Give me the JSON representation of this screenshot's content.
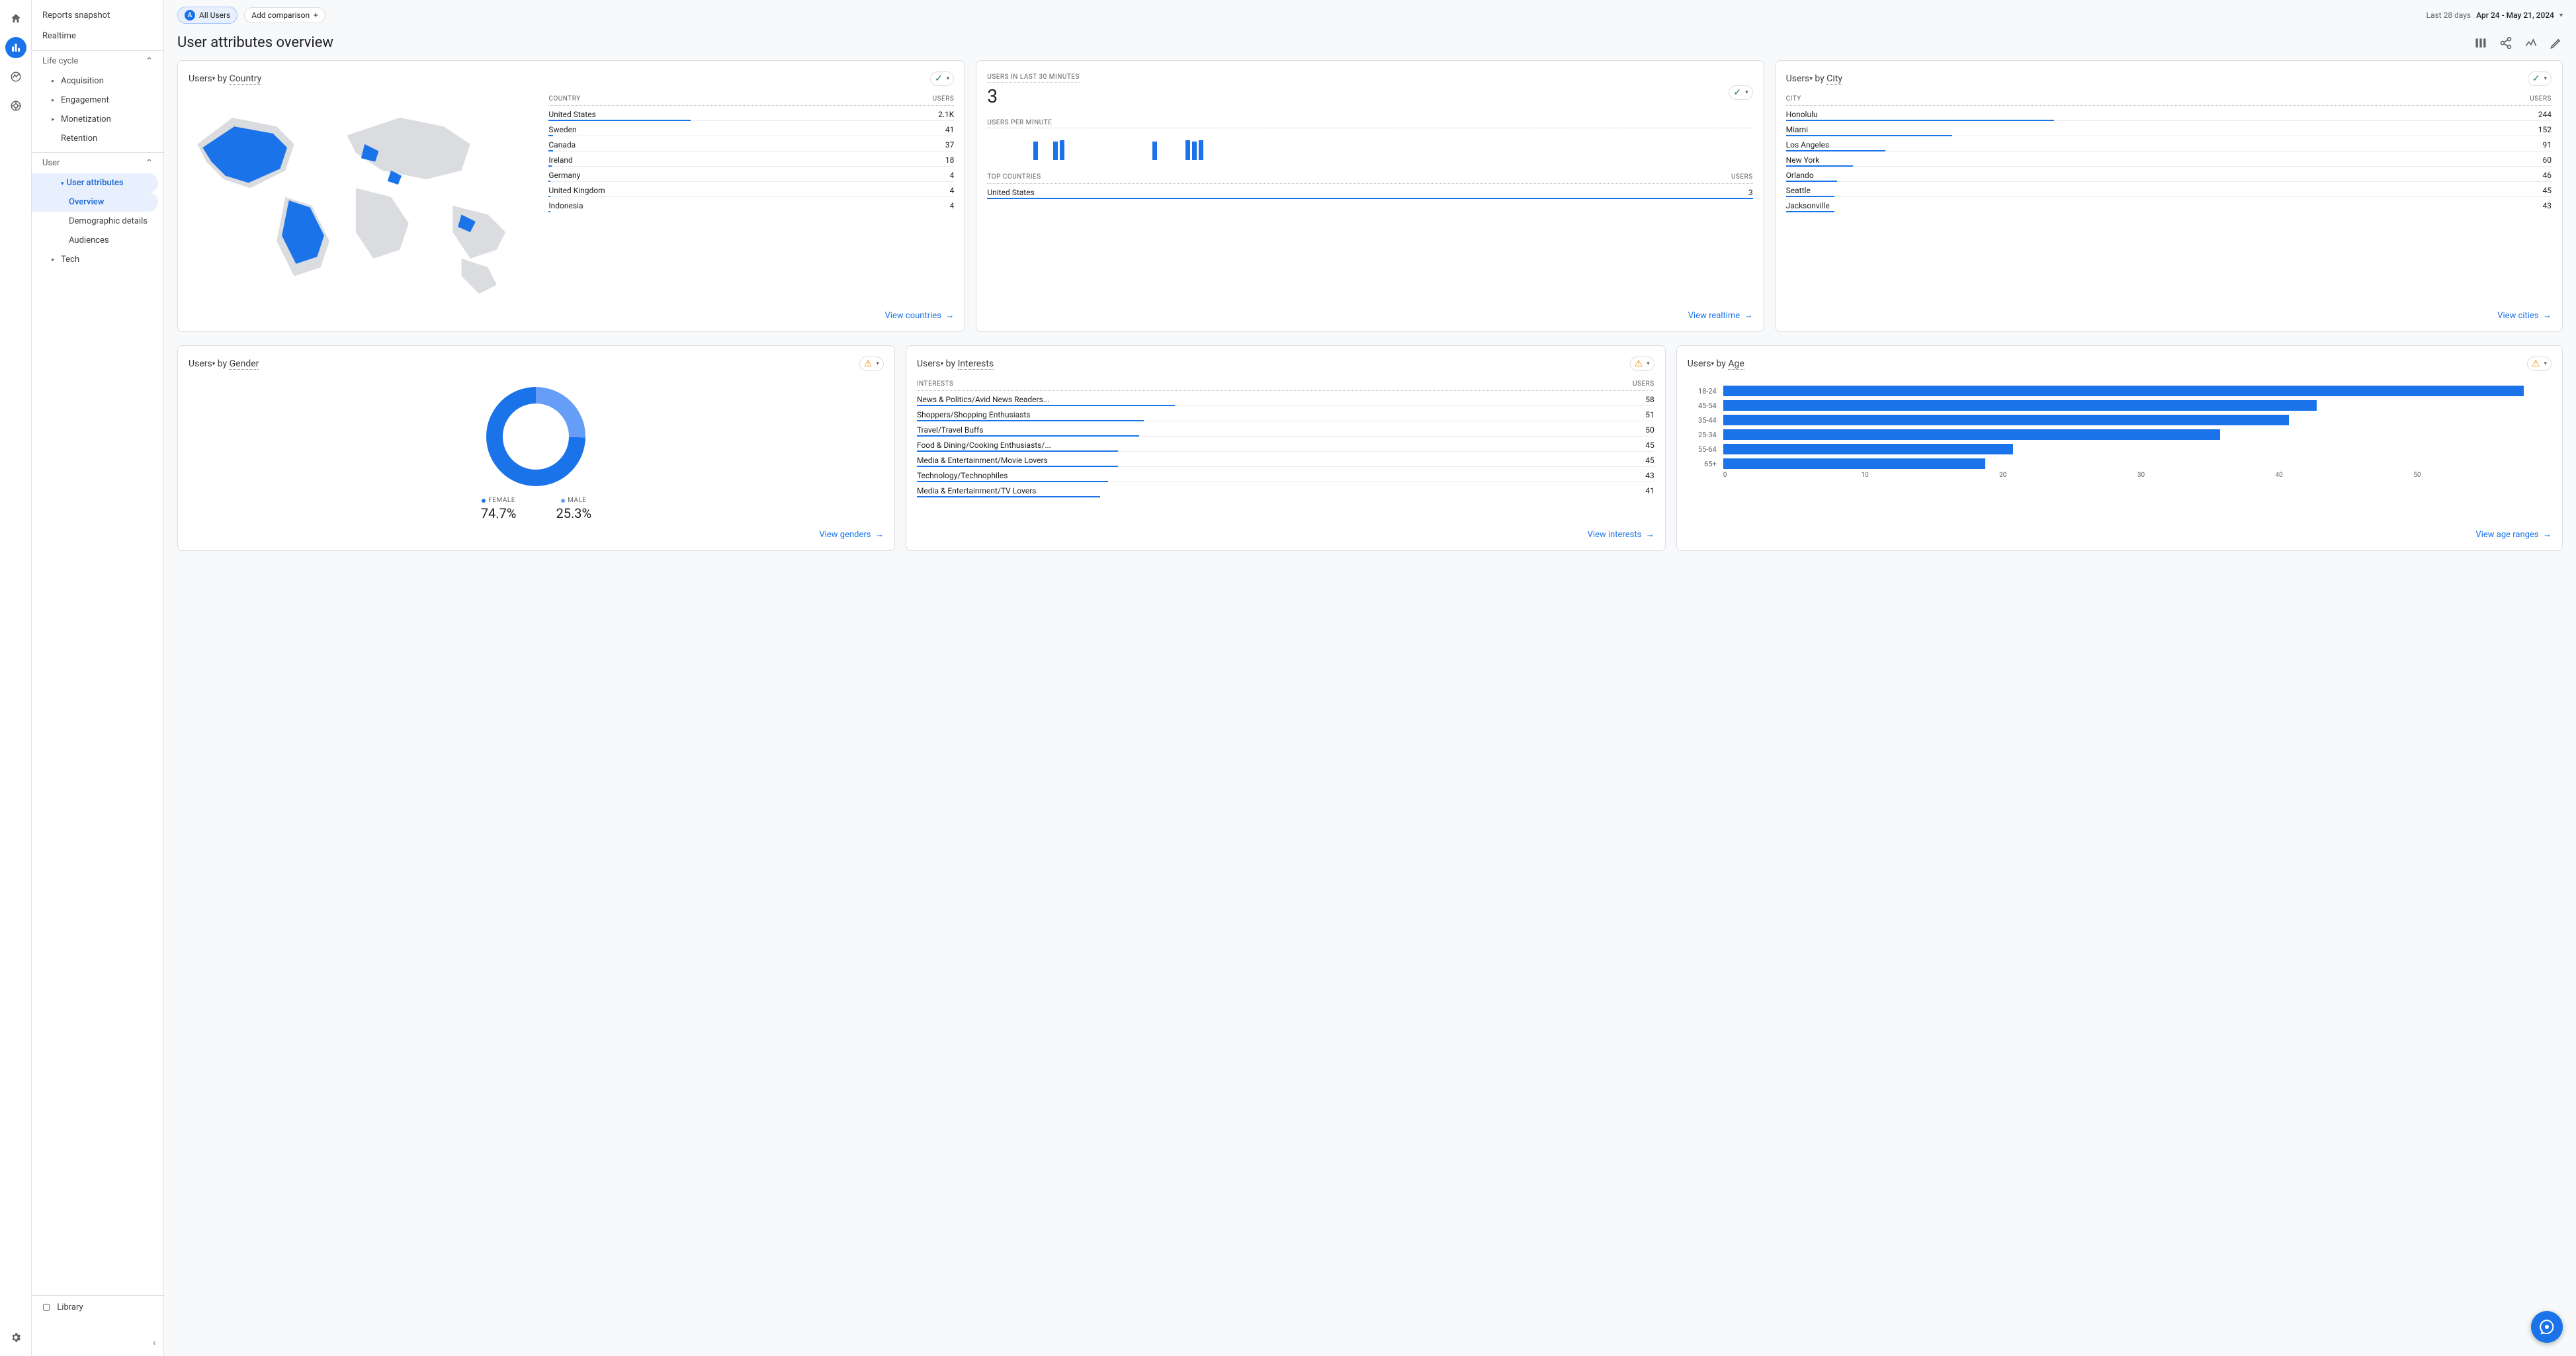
{
  "segment_label": "All Users",
  "add_comparison": "Add comparison",
  "date_prefix": "Last 28 days",
  "date_range": "Apr 24 - May 21, 2024",
  "page_title": "User attributes overview",
  "nav": {
    "snapshot": "Reports snapshot",
    "realtime": "Realtime",
    "life_cycle": "Life cycle",
    "acquisition": "Acquisition",
    "engagement": "Engagement",
    "monetization": "Monetization",
    "retention": "Retention",
    "user": "User",
    "user_attributes": "User attributes",
    "overview": "Overview",
    "demographic": "Demographic details",
    "audiences": "Audiences",
    "tech": "Tech",
    "library": "Library"
  },
  "country_card": {
    "title_metric": "Users",
    "title_by": "by",
    "title_dim": "Country",
    "col1": "COUNTRY",
    "col2": "USERS",
    "rows": [
      {
        "k": "United States",
        "v": "2.1K",
        "pct": 100
      },
      {
        "k": "Sweden",
        "v": "41",
        "pct": 3
      },
      {
        "k": "Canada",
        "v": "37",
        "pct": 3
      },
      {
        "k": "Ireland",
        "v": "18",
        "pct": 2
      },
      {
        "k": "Germany",
        "v": "4",
        "pct": 1
      },
      {
        "k": "United Kingdom",
        "v": "4",
        "pct": 1
      },
      {
        "k": "Indonesia",
        "v": "4",
        "pct": 1
      }
    ],
    "foot": "View countries"
  },
  "realtime_card": {
    "label": "USERS IN LAST 30 MINUTES",
    "value": "3",
    "per_min": "USERS PER MINUTE",
    "spark": [
      0,
      0,
      0,
      0,
      0,
      0,
      0,
      28,
      0,
      0,
      28,
      30,
      0,
      0,
      0,
      0,
      0,
      0,
      0,
      0,
      0,
      0,
      0,
      0,
      0,
      28,
      0,
      0,
      0,
      0,
      30,
      28,
      30,
      0,
      0
    ],
    "top_label": "TOP COUNTRIES",
    "top_col2": "USERS",
    "top_rows": [
      {
        "k": "United States",
        "v": "3",
        "pct": 100
      }
    ],
    "foot": "View realtime"
  },
  "city_card": {
    "title_metric": "Users",
    "title_by": "by",
    "title_dim": "City",
    "col1": "CITY",
    "col2": "USERS",
    "rows": [
      {
        "k": "Honolulu",
        "v": "244",
        "pct": 100
      },
      {
        "k": "Miami",
        "v": "152",
        "pct": 62
      },
      {
        "k": "Los Angeles",
        "v": "91",
        "pct": 37
      },
      {
        "k": "New York",
        "v": "60",
        "pct": 25
      },
      {
        "k": "Orlando",
        "v": "46",
        "pct": 19
      },
      {
        "k": "Seattle",
        "v": "45",
        "pct": 18
      },
      {
        "k": "Jacksonville",
        "v": "43",
        "pct": 18
      }
    ],
    "foot": "View cities"
  },
  "gender_card": {
    "title_metric": "Users",
    "title_by": "by",
    "title_dim": "Gender",
    "female_label": "FEMALE",
    "female_val": "74.7%",
    "female_color": "#1a73e8",
    "male_label": "MALE",
    "male_val": "25.3%",
    "male_color": "#669df6",
    "foot": "View genders"
  },
  "interests_card": {
    "title_metric": "Users",
    "title_by": "by",
    "title_dim": "Interests",
    "col1": "INTERESTS",
    "col2": "USERS",
    "rows": [
      {
        "k": "News & Politics/Avid News Readers...",
        "v": "58",
        "pct": 100
      },
      {
        "k": "Shoppers/Shopping Enthusiasts",
        "v": "51",
        "pct": 88
      },
      {
        "k": "Travel/Travel Buffs",
        "v": "50",
        "pct": 86
      },
      {
        "k": "Food & Dining/Cooking Enthusiasts/...",
        "v": "45",
        "pct": 78
      },
      {
        "k": "Media & Entertainment/Movie Lovers",
        "v": "45",
        "pct": 78
      },
      {
        "k": "Technology/Technophiles",
        "v": "43",
        "pct": 74
      },
      {
        "k": "Media & Entertainment/TV Lovers",
        "v": "41",
        "pct": 71
      }
    ],
    "foot": "View interests"
  },
  "age_card": {
    "title_metric": "Users",
    "title_by": "by",
    "title_dim": "Age",
    "rows": [
      {
        "k": "18-24",
        "v": 58
      },
      {
        "k": "45-54",
        "v": 43
      },
      {
        "k": "35-44",
        "v": 41
      },
      {
        "k": "25-34",
        "v": 36
      },
      {
        "k": "55-64",
        "v": 21
      },
      {
        "k": "65+",
        "v": 19
      }
    ],
    "axis": [
      "0",
      "10",
      "20",
      "30",
      "40",
      "50"
    ],
    "max": 60,
    "bar_color": "#1a73e8",
    "foot": "View age ranges"
  }
}
